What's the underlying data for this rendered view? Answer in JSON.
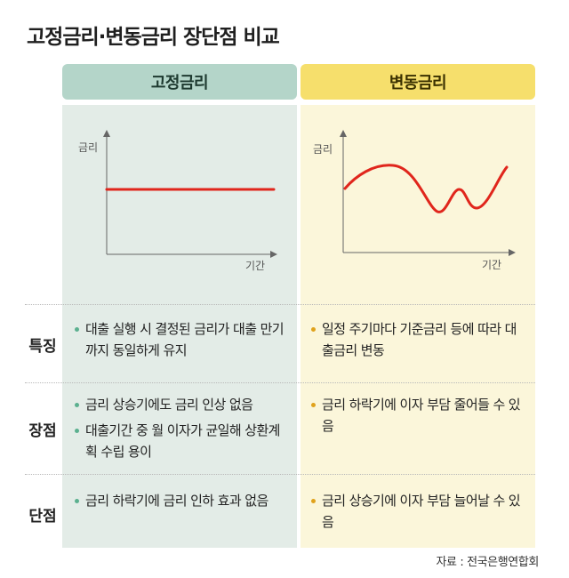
{
  "title": "고정금리·변동금리 장단점 비교",
  "columns": {
    "fixed": {
      "header": "고정금리",
      "chart": {
        "ylabel": "금리",
        "xlabel": "기간",
        "line_color": "#e0261c",
        "shape": "flat"
      }
    },
    "variable": {
      "header": "변동금리",
      "chart": {
        "ylabel": "금리",
        "xlabel": "기간",
        "line_color": "#e0261c",
        "shape": "wavy"
      }
    }
  },
  "rows": [
    {
      "label": "특징",
      "fixed": [
        "대출 실행 시 결정된 금리가 대출 만기까지 동일하게 유지"
      ],
      "variable": [
        "일정 주기마다 기준금리 등에 따라 대출금리 변동"
      ]
    },
    {
      "label": "장점",
      "fixed": [
        "금리 상승기에도 금리 인상 없음",
        "대출기간 중 월 이자가 균일해 상환계획 수립 용이"
      ],
      "variable": [
        "금리 하락기에 이자 부담 줄어들 수 있음"
      ]
    },
    {
      "label": "단점",
      "fixed": [
        "금리 하락기에 금리 인하 효과 없음"
      ],
      "variable": [
        "금리 상승기에 이자 부담 늘어날 수 있음"
      ]
    }
  ],
  "source": "자료 : 전국은행연합회",
  "colors": {
    "fixed_header": "#b4d5c9",
    "fixed_bg": "#e3ece7",
    "variable_header": "#f6df6c",
    "variable_bg": "#fbf6da",
    "fixed_bullet": "#5bb08f",
    "variable_bullet": "#e0a21c"
  }
}
